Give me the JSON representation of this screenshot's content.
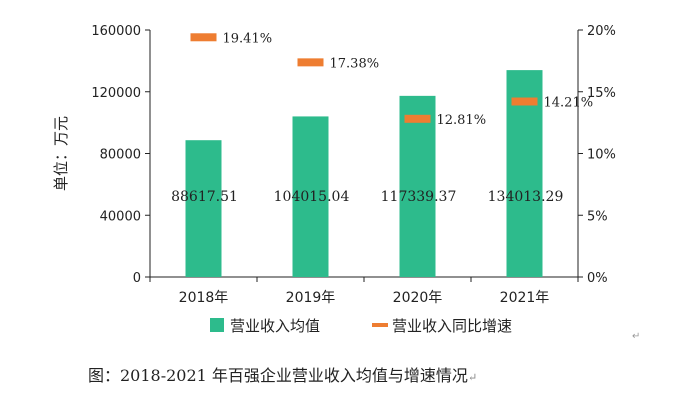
{
  "chart_data": {
    "type": "bar",
    "categories": [
      "2018年",
      "2019年",
      "2020年",
      "2021年"
    ],
    "series": [
      {
        "name": "营业收入均值",
        "type": "bar",
        "axis": "left",
        "values": [
          88617.51,
          104015.04,
          117339.37,
          134013.29
        ],
        "labels": [
          "88617.51",
          "104015.04",
          "117339.37",
          "134013.29"
        ],
        "color": "#2dbb8c"
      },
      {
        "name": "营业收入同比增速",
        "type": "marker",
        "axis": "right",
        "values": [
          19.41,
          17.38,
          12.81,
          14.21
        ],
        "labels": [
          "19.41%",
          "17.38%",
          "12.81%",
          "14.21%"
        ],
        "color": "#ee7d31"
      }
    ],
    "ylabel": "单位：万元",
    "ylim": [
      0,
      160000
    ],
    "yticks": [
      "0",
      "40000",
      "80000",
      "120000",
      "160000"
    ],
    "y2lim": [
      0,
      20
    ],
    "y2ticks": [
      "0%",
      "5%",
      "10%",
      "15%",
      "20%"
    ],
    "legend_position": "bottom"
  },
  "caption": "图：2018-2021 年百强企业营业收入均值与增速情况",
  "caption_mark": "↵",
  "para_mark": "↵"
}
